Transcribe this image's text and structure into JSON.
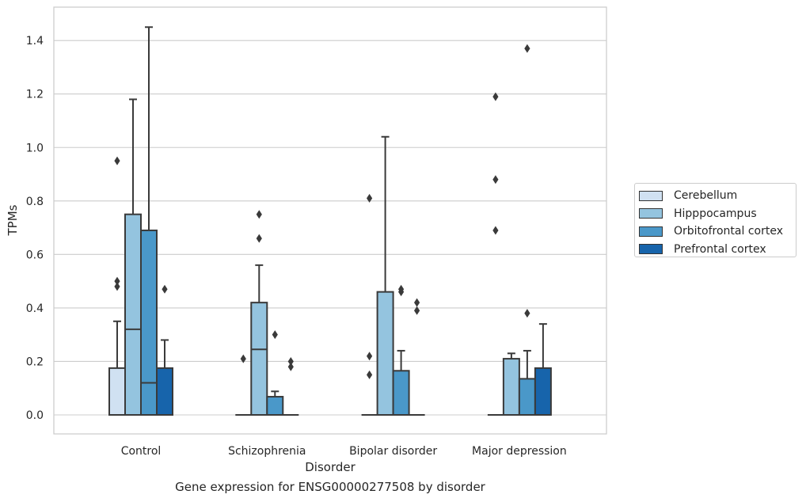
{
  "chart_data": {
    "type": "box",
    "caption": "Gene expression for ENSG00000277508 by disorder",
    "xlabel": "Disorder",
    "ylabel": "TPMs",
    "ylim": [
      -0.07,
      1.53
    ],
    "yticks": [
      "0.0",
      "0.2",
      "0.4",
      "0.6",
      "0.8",
      "1.0",
      "1.2",
      "1.4"
    ],
    "ytick_values": [
      0.0,
      0.2,
      0.4,
      0.6,
      0.8,
      1.0,
      1.2,
      1.4
    ],
    "grid": "horizontal",
    "legend_position": "outside-right",
    "categories": [
      "Control",
      "Schizophrenia",
      "Bipolar disorder",
      "Major depression"
    ],
    "series": [
      {
        "name": "Cerebellum",
        "color": "#d0e1f2",
        "boxes": [
          {
            "q1": 0.0,
            "median": 0.0,
            "q3": 0.175,
            "whisker_low": 0.0,
            "whisker_high": 0.35,
            "outliers": [
              0.95,
              0.5,
              0.48
            ]
          },
          {
            "q1": 0.0,
            "median": 0.0,
            "q3": 0.0,
            "whisker_low": 0.0,
            "whisker_high": 0.0,
            "outliers": [
              0.21
            ]
          },
          {
            "q1": 0.0,
            "median": 0.0,
            "q3": 0.0,
            "whisker_low": 0.0,
            "whisker_high": 0.0,
            "outliers": [
              0.81,
              0.22,
              0.15
            ]
          },
          {
            "q1": 0.0,
            "median": 0.0,
            "q3": 0.0,
            "whisker_low": 0.0,
            "whisker_high": 0.0,
            "outliers": [
              1.19,
              0.88,
              0.69
            ]
          }
        ]
      },
      {
        "name": "Hipppocampus",
        "color": "#94c4df",
        "boxes": [
          {
            "q1": 0.0,
            "median": 0.32,
            "q3": 0.75,
            "whisker_low": 0.0,
            "whisker_high": 1.18,
            "outliers": []
          },
          {
            "q1": 0.0,
            "median": 0.245,
            "q3": 0.42,
            "whisker_low": 0.0,
            "whisker_high": 0.56,
            "outliers": [
              0.75,
              0.66
            ]
          },
          {
            "q1": 0.0,
            "median": 0.0,
            "q3": 0.46,
            "whisker_low": 0.0,
            "whisker_high": 1.04,
            "outliers": []
          },
          {
            "q1": 0.0,
            "median": 0.0,
            "q3": 0.21,
            "whisker_low": 0.0,
            "whisker_high": 0.23,
            "outliers": []
          }
        ]
      },
      {
        "name": "Orbitofrontal cortex",
        "color": "#4a98c9",
        "boxes": [
          {
            "q1": 0.0,
            "median": 0.12,
            "q3": 0.69,
            "whisker_low": 0.0,
            "whisker_high": 1.45,
            "outliers": []
          },
          {
            "q1": 0.0,
            "median": 0.0,
            "q3": 0.068,
            "whisker_low": 0.0,
            "whisker_high": 0.088,
            "outliers": [
              0.3
            ]
          },
          {
            "q1": 0.0,
            "median": 0.0,
            "q3": 0.165,
            "whisker_low": 0.0,
            "whisker_high": 0.24,
            "outliers": [
              0.47,
              0.46
            ]
          },
          {
            "q1": 0.0,
            "median": 0.0,
            "q3": 0.135,
            "whisker_low": 0.0,
            "whisker_high": 0.24,
            "outliers": [
              0.38,
              1.37
            ]
          }
        ]
      },
      {
        "name": "Prefrontal cortex",
        "color": "#1764ab",
        "boxes": [
          {
            "q1": 0.0,
            "median": 0.0,
            "q3": 0.175,
            "whisker_low": 0.0,
            "whisker_high": 0.28,
            "outliers": [
              0.47
            ]
          },
          {
            "q1": 0.0,
            "median": 0.0,
            "q3": 0.0,
            "whisker_low": 0.0,
            "whisker_high": 0.0,
            "outliers": [
              0.2,
              0.18
            ]
          },
          {
            "q1": 0.0,
            "median": 0.0,
            "q3": 0.0,
            "whisker_low": 0.0,
            "whisker_high": 0.0,
            "outliers": [
              0.42,
              0.39
            ]
          },
          {
            "q1": 0.0,
            "median": 0.0,
            "q3": 0.175,
            "whisker_low": 0.0,
            "whisker_high": 0.34,
            "outliers": []
          }
        ]
      }
    ]
  }
}
